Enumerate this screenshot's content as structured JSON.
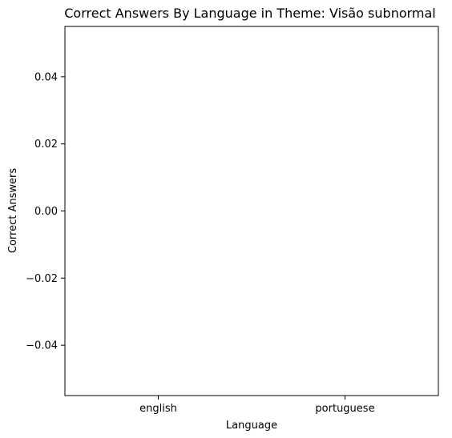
{
  "chart_data": {
    "type": "bar",
    "title": "Correct Answers By Language in Theme: Visão subnormal",
    "xlabel": "Language",
    "ylabel": "Correct Answers",
    "categories": [
      "english",
      "portuguese"
    ],
    "values": [
      0,
      0
    ],
    "ylim": [
      -0.055,
      0.055
    ],
    "yticks": [
      0.04,
      0.02,
      0.0,
      -0.02,
      -0.04
    ],
    "ytick_labels": [
      "0.04",
      "0.02",
      "0.00",
      "−0.02",
      "−0.04"
    ],
    "bar_color": "#1f77b4",
    "grid": false,
    "legend": "none"
  }
}
